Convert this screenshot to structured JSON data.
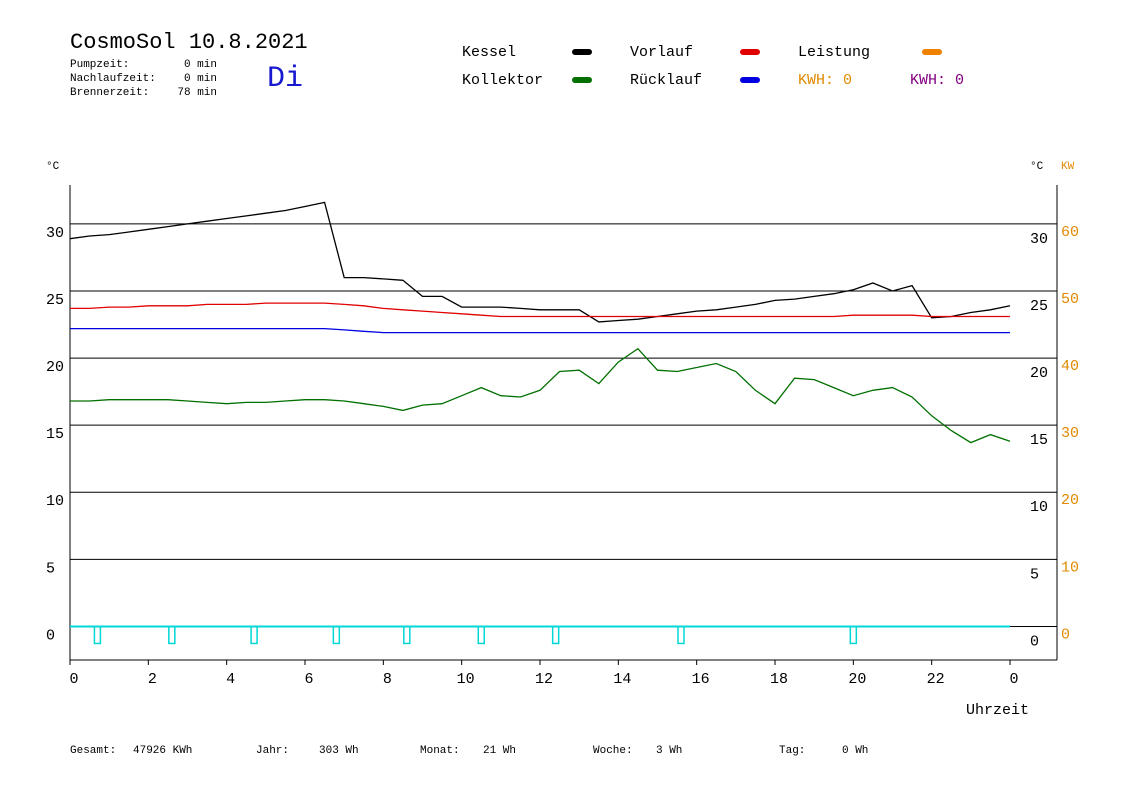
{
  "header": {
    "title": "CosmoSol 10.8.2021",
    "weekday": "Di",
    "stats": [
      {
        "label": "Pumpzeit:",
        "value": "0 min"
      },
      {
        "label": "Nachlaufzeit:",
        "value": "0 min"
      },
      {
        "label": "Brennerzeit:",
        "value": "78 min"
      }
    ]
  },
  "chart_data": {
    "type": "line",
    "ylabel": "°C",
    "y2label_left": "°C",
    "y2label": "KW",
    "xlabel": "Uhrzeit",
    "x": [
      0,
      0.5,
      1,
      1.5,
      2,
      2.5,
      3,
      3.5,
      4,
      4.5,
      5,
      5.5,
      6,
      6.5,
      7,
      7.5,
      8,
      8.5,
      9,
      9.5,
      10,
      10.5,
      11,
      11.5,
      12,
      12.5,
      13,
      13.5,
      14,
      14.5,
      15,
      15.5,
      16,
      16.5,
      17,
      17.5,
      18,
      18.5,
      19,
      19.5,
      20,
      20.5,
      21,
      21.5,
      22,
      22.5,
      23,
      23.5,
      24
    ],
    "xlim": [
      0,
      25.2
    ],
    "xticks": [
      0,
      2,
      4,
      6,
      8,
      10,
      12,
      14,
      16,
      18,
      20,
      22,
      {
        "value": 24,
        "label": "0"
      }
    ],
    "ylim": [
      -2.5,
      32.9
    ],
    "yticks": [
      0,
      5,
      10,
      15,
      20,
      25,
      30
    ],
    "y2lim": [
      -5,
      65.8
    ],
    "y2ticks": [
      0,
      10,
      20,
      30,
      40,
      50,
      60
    ],
    "y2color": "#e08a00",
    "grid": true,
    "series": [
      {
        "name": "Kessel",
        "color": "#000000",
        "values": [
          28.9,
          29.1,
          29.2,
          29.4,
          29.6,
          29.8,
          30.0,
          30.2,
          30.4,
          30.6,
          30.8,
          31.0,
          31.3,
          31.6,
          26.0,
          26.0,
          25.9,
          25.8,
          24.6,
          24.6,
          23.8,
          23.8,
          23.8,
          23.7,
          23.6,
          23.6,
          23.6,
          22.7,
          22.8,
          22.9,
          23.1,
          23.3,
          23.5,
          23.6,
          23.8,
          24.0,
          24.3,
          24.4,
          24.6,
          24.8,
          25.1,
          25.6,
          25.0,
          25.4,
          23.0,
          23.1,
          23.4,
          23.6,
          23.9
        ]
      },
      {
        "name": "Vorlauf",
        "color": "#e00000",
        "values": [
          23.7,
          23.7,
          23.8,
          23.8,
          23.9,
          23.9,
          23.9,
          24.0,
          24.0,
          24.0,
          24.1,
          24.1,
          24.1,
          24.1,
          24.0,
          23.9,
          23.7,
          23.6,
          23.5,
          23.4,
          23.3,
          23.2,
          23.1,
          23.1,
          23.1,
          23.1,
          23.1,
          23.1,
          23.1,
          23.1,
          23.1,
          23.1,
          23.1,
          23.1,
          23.1,
          23.1,
          23.1,
          23.1,
          23.1,
          23.1,
          23.2,
          23.2,
          23.2,
          23.2,
          23.1,
          23.1,
          23.1,
          23.1,
          23.1
        ]
      },
      {
        "name": "Leistung",
        "color": "#f08000"
      },
      {
        "name": "Kollektor",
        "color": "#007000",
        "values": [
          16.8,
          16.8,
          16.9,
          16.9,
          16.9,
          16.9,
          16.8,
          16.7,
          16.6,
          16.7,
          16.7,
          16.8,
          16.9,
          16.9,
          16.8,
          16.6,
          16.4,
          16.1,
          16.5,
          16.6,
          17.2,
          17.8,
          17.2,
          17.1,
          17.6,
          19.0,
          19.1,
          18.1,
          19.7,
          20.7,
          19.1,
          19.0,
          19.3,
          19.6,
          19.0,
          17.6,
          16.6,
          18.5,
          18.4,
          17.8,
          17.2,
          17.6,
          17.8,
          17.1,
          15.7,
          14.6,
          13.7,
          14.3,
          13.8
        ]
      },
      {
        "name": "Rücklauf",
        "color": "#0000e0",
        "values": [
          22.2,
          22.2,
          22.2,
          22.2,
          22.2,
          22.2,
          22.2,
          22.2,
          22.2,
          22.2,
          22.2,
          22.2,
          22.2,
          22.2,
          22.1,
          22.0,
          21.9,
          21.9,
          21.9,
          21.9,
          21.9,
          21.9,
          21.9,
          21.9,
          21.9,
          21.9,
          21.9,
          21.9,
          21.9,
          21.9,
          21.9,
          21.9,
          21.9,
          21.9,
          21.9,
          21.9,
          21.9,
          21.9,
          21.9,
          21.9,
          21.9,
          21.9,
          21.9,
          21.9,
          21.9,
          21.9,
          21.9,
          21.9,
          21.9
        ]
      }
    ],
    "kwh": [
      {
        "label": "KWH: 0",
        "color": "#e08a00"
      },
      {
        "label": "KWH: 0",
        "color": "#800080"
      }
    ],
    "pulses": {
      "color": "#00d8d8",
      "x": [
        0.7,
        2.6,
        4.7,
        6.8,
        8.6,
        10.5,
        12.4,
        15.6,
        20.0
      ]
    }
  },
  "footer": [
    {
      "label": "Gesamt:",
      "value": "47926 KWh"
    },
    {
      "label": "Jahr:",
      "value": "303 Wh"
    },
    {
      "label": "Monat:",
      "value": "21 Wh"
    },
    {
      "label": "Woche:",
      "value": "3 Wh"
    },
    {
      "label": "Tag:",
      "value": "0 Wh"
    }
  ]
}
